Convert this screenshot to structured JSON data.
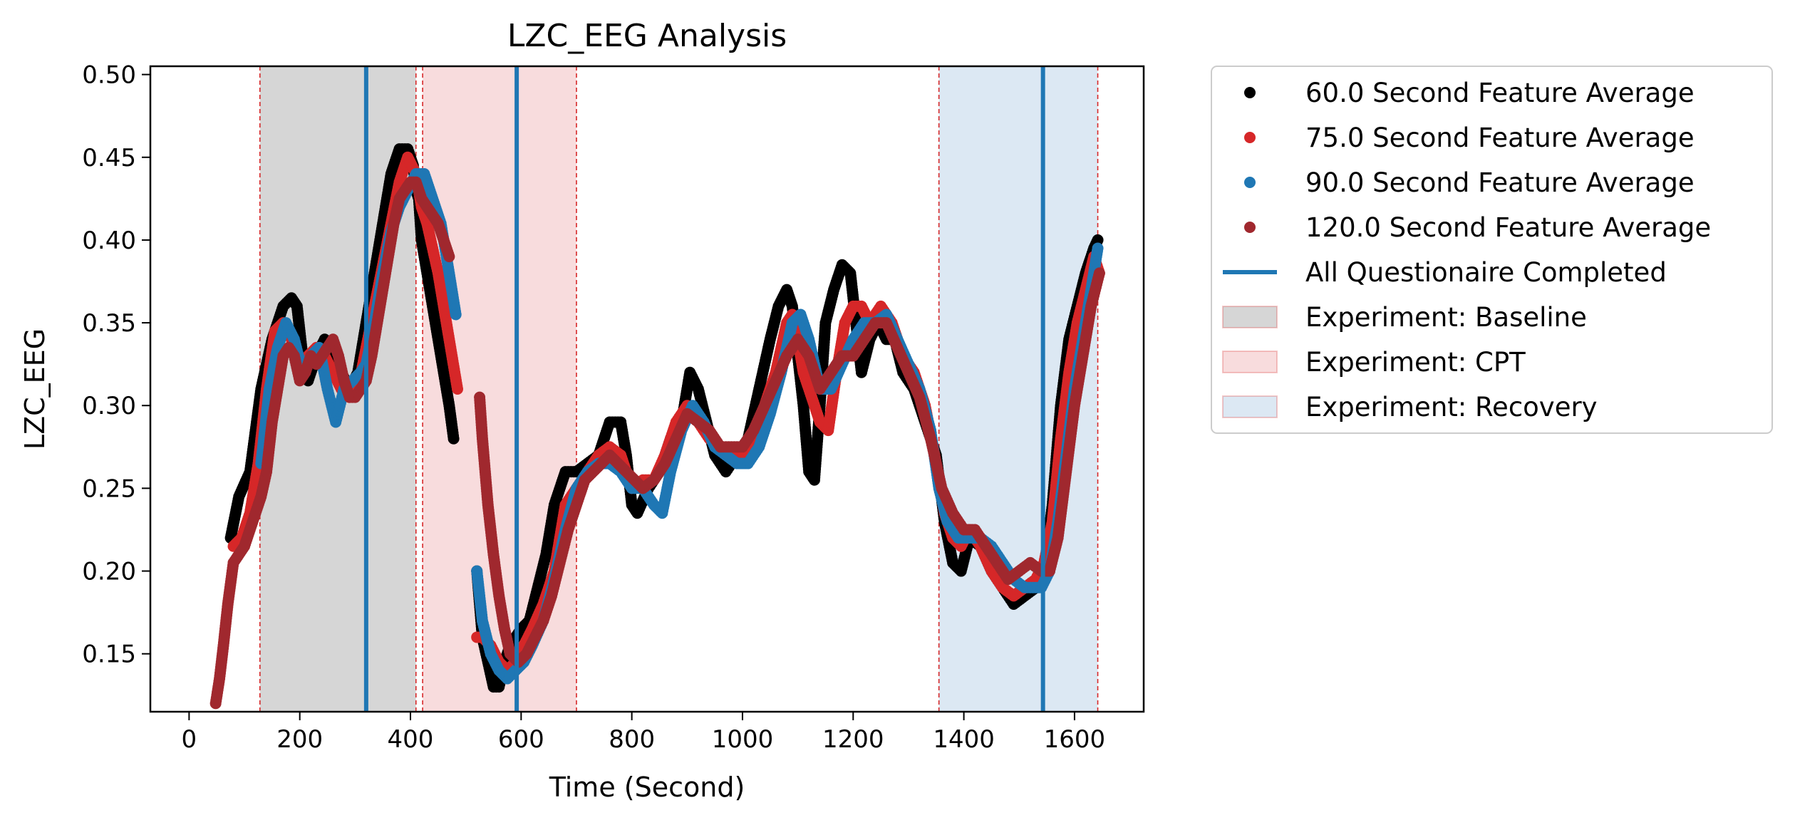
{
  "chart_data": {
    "type": "scatter",
    "title": "LZC_EEG Analysis",
    "xlabel": "Time (Second)",
    "ylabel": "LZC_EEG",
    "xlim": [
      -70,
      1725
    ],
    "ylim": [
      0.115,
      0.505
    ],
    "xticks": [
      0,
      200,
      400,
      600,
      800,
      1000,
      1200,
      1400,
      1600
    ],
    "yticks": [
      0.15,
      0.2,
      0.25,
      0.3,
      0.35,
      0.4,
      0.45,
      0.5
    ],
    "ytick_labels": [
      "0.15",
      "0.20",
      "0.25",
      "0.30",
      "0.35",
      "0.40",
      "0.45",
      "0.50"
    ],
    "grid": false,
    "legend_position": "outside-right",
    "regions": [
      {
        "name": "Experiment: Baseline",
        "start": 128,
        "end": 410,
        "color": "#d6d6d6"
      },
      {
        "name": "Experiment: CPT",
        "start": 422,
        "end": 700,
        "color": "#f8dcdd"
      },
      {
        "name": "Experiment: Recovery",
        "start": 1355,
        "end": 1642,
        "color": "#dce8f3"
      }
    ],
    "region_boundaries": [
      128,
      410,
      422,
      700,
      1355,
      1642
    ],
    "boundary_color": "#d62728",
    "questionnaire": {
      "name": "All Questionaire Completed",
      "times": [
        320,
        592,
        1543
      ],
      "color": "#1f77b4"
    },
    "series": [
      {
        "name": "60.0 Second Feature Average",
        "color": "#000000",
        "segments": [
          {
            "x": [
              75,
              90,
              110,
              130,
              150,
              170,
              185,
              195,
              205,
              215,
              230,
              245,
              260,
              275,
              290,
              305,
              320,
              335,
              350,
              365,
              380,
              395,
              405,
              410,
              415,
              420,
              430,
              440,
              450,
              460,
              470,
              478
            ],
            "y": [
              0.22,
              0.245,
              0.26,
              0.31,
              0.34,
              0.36,
              0.365,
              0.36,
              0.33,
              0.315,
              0.33,
              0.34,
              0.33,
              0.32,
              0.31,
              0.32,
              0.35,
              0.38,
              0.41,
              0.44,
              0.455,
              0.455,
              0.445,
              0.43,
              0.425,
              0.4,
              0.38,
              0.36,
              0.34,
              0.32,
              0.3,
              0.28
            ]
          },
          {
            "x": [
              520,
              530,
              540,
              550,
              560,
              570,
              580,
              590,
              600,
              615,
              630,
              645,
              660,
              680,
              700,
              720,
              740,
              760,
              780,
              790,
              800,
              810,
              830,
              850,
              870,
              890,
              905,
              920,
              935,
              950,
              970,
              990,
              1010,
              1030,
              1050,
              1065,
              1080,
              1090,
              1100,
              1110,
              1120,
              1130,
              1140,
              1150,
              1165,
              1180,
              1195,
              1205,
              1215,
              1230,
              1245,
              1260,
              1275,
              1290,
              1310,
              1330,
              1350,
              1365,
              1380,
              1395,
              1410,
              1430,
              1450,
              1470,
              1490,
              1510,
              1530,
              1545,
              1560,
              1575,
              1590,
              1605,
              1620,
              1635,
              1642
            ],
            "y": [
              0.2,
              0.16,
              0.145,
              0.13,
              0.13,
              0.145,
              0.155,
              0.16,
              0.165,
              0.17,
              0.19,
              0.21,
              0.24,
              0.26,
              0.26,
              0.265,
              0.27,
              0.29,
              0.29,
              0.27,
              0.24,
              0.235,
              0.25,
              0.26,
              0.28,
              0.29,
              0.32,
              0.31,
              0.29,
              0.27,
              0.26,
              0.27,
              0.28,
              0.31,
              0.34,
              0.36,
              0.37,
              0.36,
              0.33,
              0.3,
              0.26,
              0.255,
              0.3,
              0.35,
              0.37,
              0.385,
              0.38,
              0.35,
              0.32,
              0.34,
              0.35,
              0.34,
              0.34,
              0.32,
              0.31,
              0.29,
              0.27,
              0.23,
              0.205,
              0.2,
              0.22,
              0.215,
              0.2,
              0.19,
              0.18,
              0.185,
              0.19,
              0.2,
              0.24,
              0.3,
              0.34,
              0.36,
              0.38,
              0.395,
              0.4
            ]
          }
        ]
      },
      {
        "name": "75.0 Second Feature Average",
        "color": "#d62728",
        "segments": [
          {
            "x": [
              80,
              95,
              110,
              125,
              140,
              155,
              170,
              185,
              200,
              215,
              230,
              245,
              260,
              275,
              290,
              305,
              320,
              335,
              350,
              365,
              380,
              395,
              410,
              420,
              430,
              440,
              450,
              460,
              470,
              480,
              485
            ],
            "y": [
              0.215,
              0.22,
              0.235,
              0.265,
              0.31,
              0.345,
              0.35,
              0.34,
              0.32,
              0.33,
              0.335,
              0.33,
              0.32,
              0.31,
              0.305,
              0.31,
              0.335,
              0.36,
              0.385,
              0.41,
              0.435,
              0.45,
              0.44,
              0.42,
              0.41,
              0.395,
              0.38,
              0.36,
              0.34,
              0.32,
              0.31
            ]
          },
          {
            "x": [
              520,
              530,
              545,
              560,
              575,
              590,
              605,
              620,
              640,
              660,
              680,
              700,
              720,
              740,
              760,
              780,
              800,
              820,
              840,
              860,
              880,
              900,
              920,
              940,
              960,
              980,
              1000,
              1020,
              1040,
              1060,
              1080,
              1090,
              1100,
              1110,
              1125,
              1140,
              1155,
              1170,
              1185,
              1200,
              1215,
              1230,
              1250,
              1270,
              1290,
              1310,
              1330,
              1350,
              1365,
              1380,
              1395,
              1410,
              1430,
              1450,
              1470,
              1490,
              1510,
              1530,
              1545,
              1560,
              1575,
              1590,
              1605,
              1620,
              1635,
              1645
            ],
            "y": [
              0.16,
              0.16,
              0.155,
              0.145,
              0.14,
              0.145,
              0.155,
              0.165,
              0.18,
              0.2,
              0.24,
              0.25,
              0.26,
              0.27,
              0.275,
              0.27,
              0.25,
              0.255,
              0.255,
              0.27,
              0.29,
              0.3,
              0.29,
              0.28,
              0.275,
              0.27,
              0.27,
              0.28,
              0.3,
              0.32,
              0.35,
              0.355,
              0.34,
              0.32,
              0.305,
              0.29,
              0.285,
              0.32,
              0.35,
              0.36,
              0.36,
              0.35,
              0.36,
              0.35,
              0.33,
              0.32,
              0.3,
              0.265,
              0.235,
              0.22,
              0.215,
              0.225,
              0.215,
              0.2,
              0.19,
              0.185,
              0.19,
              0.195,
              0.205,
              0.23,
              0.28,
              0.32,
              0.35,
              0.37,
              0.39,
              0.38
            ]
          }
        ]
      },
      {
        "name": "90.0 Second Feature Average",
        "color": "#1f77b4",
        "segments": [
          {
            "x": [
              130,
              145,
              160,
              175,
              190,
              205,
              220,
              235,
              250,
              265,
              280,
              295,
              310,
              320,
              335,
              350,
              365,
              380,
              395,
              410,
              425,
              440,
              455,
              470,
              482
            ],
            "y": [
              0.265,
              0.31,
              0.335,
              0.35,
              0.34,
              0.32,
              0.33,
              0.335,
              0.31,
              0.29,
              0.31,
              0.315,
              0.32,
              0.325,
              0.35,
              0.38,
              0.405,
              0.42,
              0.43,
              0.44,
              0.44,
              0.425,
              0.41,
              0.38,
              0.355
            ]
          },
          {
            "x": [
              520,
              530,
              545,
              560,
              575,
              590,
              605,
              620,
              640,
              660,
              680,
              700,
              720,
              740,
              760,
              780,
              800,
              820,
              840,
              855,
              870,
              890,
              910,
              930,
              950,
              970,
              990,
              1010,
              1030,
              1050,
              1070,
              1090,
              1105,
              1120,
              1140,
              1160,
              1180,
              1200,
              1220,
              1240,
              1260,
              1280,
              1300,
              1320,
              1340,
              1355,
              1370,
              1390,
              1410,
              1430,
              1450,
              1470,
              1490,
              1510,
              1525,
              1540,
              1555,
              1570,
              1585,
              1600,
              1615,
              1630,
              1642
            ],
            "y": [
              0.2,
              0.17,
              0.15,
              0.14,
              0.135,
              0.14,
              0.145,
              0.155,
              0.17,
              0.195,
              0.225,
              0.25,
              0.26,
              0.265,
              0.265,
              0.26,
              0.25,
              0.25,
              0.24,
              0.235,
              0.26,
              0.285,
              0.3,
              0.29,
              0.275,
              0.27,
              0.265,
              0.265,
              0.275,
              0.295,
              0.32,
              0.35,
              0.355,
              0.34,
              0.31,
              0.31,
              0.325,
              0.34,
              0.35,
              0.35,
              0.355,
              0.34,
              0.325,
              0.31,
              0.285,
              0.25,
              0.23,
              0.22,
              0.22,
              0.22,
              0.215,
              0.205,
              0.195,
              0.19,
              0.19,
              0.19,
              0.2,
              0.23,
              0.27,
              0.31,
              0.34,
              0.37,
              0.395
            ]
          }
        ]
      },
      {
        "name": "120.0 Second Feature Average",
        "color": "#a0282e",
        "segments": [
          {
            "x": [
              48,
              55,
              62,
              70,
              80,
              90,
              100,
              110,
              120,
              130,
              140,
              150,
              160,
              170,
              180,
              190,
              200,
              210,
              220,
              230,
              240,
              250,
              260,
              270,
              280,
              290,
              300,
              310,
              320,
              330,
              340,
              350,
              360,
              370,
              380,
              390,
              400,
              410,
              420,
              430,
              440,
              450,
              460,
              470
            ],
            "y": [
              0.12,
              0.135,
              0.155,
              0.18,
              0.205,
              0.21,
              0.215,
              0.225,
              0.235,
              0.245,
              0.26,
              0.29,
              0.31,
              0.33,
              0.335,
              0.33,
              0.315,
              0.32,
              0.33,
              0.325,
              0.33,
              0.335,
              0.34,
              0.33,
              0.315,
              0.305,
              0.305,
              0.31,
              0.315,
              0.33,
              0.35,
              0.37,
              0.39,
              0.41,
              0.425,
              0.43,
              0.435,
              0.435,
              0.425,
              0.42,
              0.415,
              0.41,
              0.4,
              0.39
            ]
          },
          {
            "x": [
              525,
              530,
              540,
              550,
              560,
              570,
              580,
              595,
              610,
              625,
              640,
              655,
              670,
              685,
              700,
              715,
              730,
              745,
              760,
              775,
              790,
              805,
              820,
              840,
              860,
              880,
              900,
              920,
              940,
              960,
              980,
              1000,
              1020,
              1040,
              1060,
              1080,
              1100,
              1120,
              1140,
              1160,
              1180,
              1200,
              1220,
              1240,
              1260,
              1280,
              1300,
              1320,
              1340,
              1360,
              1380,
              1400,
              1420,
              1440,
              1460,
              1480,
              1500,
              1520,
              1540,
              1555,
              1570,
              1585,
              1600,
              1615,
              1630,
              1645
            ],
            "y": [
              0.305,
              0.28,
              0.24,
              0.21,
              0.185,
              0.165,
              0.15,
              0.145,
              0.15,
              0.16,
              0.17,
              0.185,
              0.205,
              0.225,
              0.24,
              0.255,
              0.26,
              0.265,
              0.27,
              0.265,
              0.26,
              0.255,
              0.25,
              0.255,
              0.265,
              0.28,
              0.295,
              0.29,
              0.285,
              0.275,
              0.275,
              0.275,
              0.285,
              0.3,
              0.315,
              0.33,
              0.34,
              0.33,
              0.31,
              0.32,
              0.33,
              0.33,
              0.34,
              0.35,
              0.35,
              0.335,
              0.32,
              0.305,
              0.28,
              0.25,
              0.235,
              0.225,
              0.225,
              0.215,
              0.205,
              0.195,
              0.2,
              0.205,
              0.2,
              0.2,
              0.22,
              0.26,
              0.3,
              0.33,
              0.36,
              0.38
            ]
          }
        ]
      }
    ]
  }
}
